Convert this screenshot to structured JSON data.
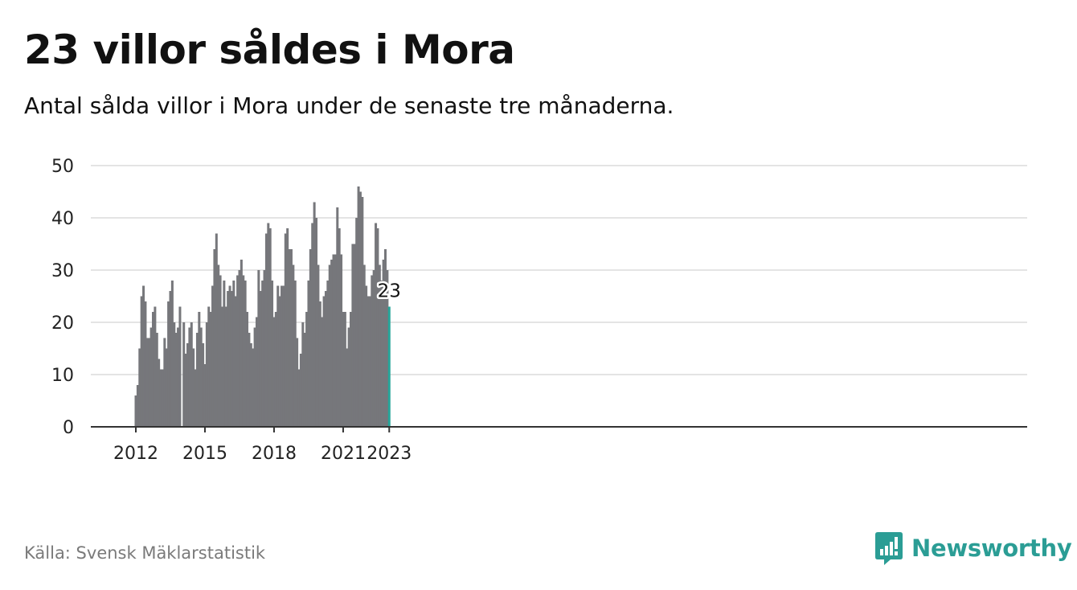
{
  "title": "23 villor såldes i Mora",
  "subtitle": "Antal sålda villor i Mora under de senaste tre månaderna.",
  "source": "Källa: Svensk Mäklarstatistik",
  "brand": {
    "name": "Newsworthy",
    "icon": "newsworthy-logo-icon"
  },
  "colors": {
    "bar": "#76777b",
    "highlight": "#26a69a",
    "grid": "#dcdcdc",
    "axis": "#333333",
    "brand": "#2b9d95"
  },
  "chart_data": {
    "type": "bar",
    "x_start": "2012-01",
    "x_ticks": [
      "2012",
      "2015",
      "2018",
      "2021",
      "2023"
    ],
    "y_ticks": [
      0,
      10,
      20,
      30,
      40,
      50
    ],
    "ylim": [
      0,
      50
    ],
    "grid": true,
    "highlight_label": "23",
    "values": [
      6,
      8,
      15,
      25,
      27,
      24,
      17,
      17,
      19,
      22,
      23,
      18,
      13,
      11,
      11,
      17,
      15,
      24,
      26,
      28,
      20,
      18,
      19,
      23,
      null,
      20,
      14,
      16,
      19,
      20,
      15,
      11,
      18,
      22,
      19,
      16,
      12,
      20,
      23,
      22,
      27,
      34,
      37,
      31,
      29,
      23,
      28,
      23,
      26,
      27,
      26,
      28,
      25,
      29,
      30,
      32,
      29,
      28,
      22,
      18,
      16,
      15,
      19,
      21,
      30,
      26,
      28,
      30,
      37,
      39,
      38,
      28,
      21,
      22,
      27,
      25,
      27,
      27,
      37,
      38,
      34,
      34,
      31,
      28,
      17,
      11,
      14,
      20,
      18,
      22,
      28,
      34,
      39,
      43,
      40,
      31,
      24,
      21,
      25,
      26,
      28,
      31,
      32,
      33,
      33,
      42,
      38,
      33,
      22,
      22,
      15,
      19,
      22,
      35,
      35,
      40,
      46,
      45,
      44,
      31,
      27,
      25,
      25,
      29,
      30,
      39,
      38,
      31,
      28,
      32,
      34,
      30,
      23
    ]
  }
}
